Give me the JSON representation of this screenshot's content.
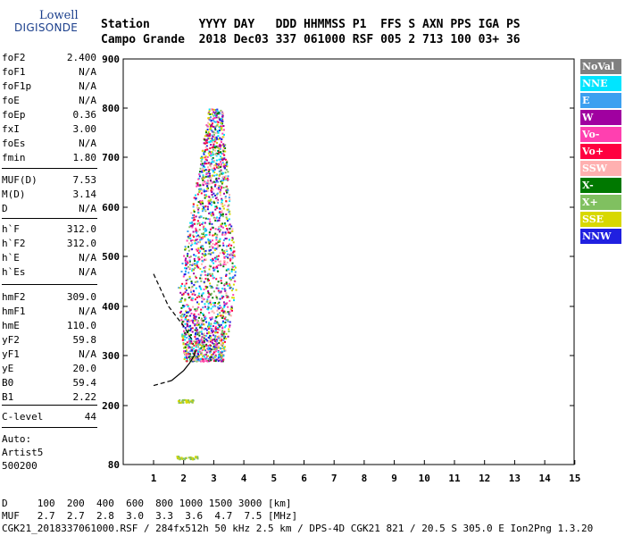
{
  "logo": {
    "line1": "Lowell",
    "line2": "DIGISONDE"
  },
  "header": {
    "row1": "Station       YYYY DAY   DDD HHMMSS P1  FFS S AXN PPS IGA PS",
    "row2": "Campo Grande  2018 Dec03 337 061000 RSF 005 2 713 100 03+ 36"
  },
  "params": [
    {
      "label": "foF2",
      "value": "2.400"
    },
    {
      "label": "foF1",
      "value": "N/A"
    },
    {
      "label": "foF1p",
      "value": "N/A"
    },
    {
      "label": "foE",
      "value": "N/A"
    },
    {
      "label": "foEp",
      "value": "0.36"
    },
    {
      "label": "fxI",
      "value": "3.00"
    },
    {
      "label": "foEs",
      "value": "N/A"
    },
    {
      "label": "fmin",
      "value": "1.80"
    },
    {
      "label": "MUF(D)",
      "value": "7.53"
    },
    {
      "label": "M(D)",
      "value": "3.14"
    },
    {
      "label": "D",
      "value": "N/A"
    },
    {
      "label": "h`F",
      "value": "312.0"
    },
    {
      "label": "h`F2",
      "value": "312.0"
    },
    {
      "label": "h`E",
      "value": "N/A"
    },
    {
      "label": "h`Es",
      "value": "N/A"
    },
    {
      "label": "hmF2",
      "value": "309.0"
    },
    {
      "label": "hmF1",
      "value": "N/A"
    },
    {
      "label": "hmE",
      "value": "110.0"
    },
    {
      "label": "yF2",
      "value": "59.8"
    },
    {
      "label": "yF1",
      "value": "N/A"
    },
    {
      "label": "yE",
      "value": "20.0"
    },
    {
      "label": "B0",
      "value": "59.4"
    },
    {
      "label": "B1",
      "value": "2.22"
    },
    {
      "label": "C-level",
      "value": "44"
    }
  ],
  "auto": {
    "line1": "Auto:",
    "line2": "Artist5",
    "line3": "500200"
  },
  "legend": [
    {
      "label": "NoVal",
      "color": "#808080"
    },
    {
      "label": "NNE",
      "color": "#00e5ff"
    },
    {
      "label": "E",
      "color": "#3ca0f0"
    },
    {
      "label": "W",
      "color": "#a000a0"
    },
    {
      "label": "Vo-",
      "color": "#ff40b0"
    },
    {
      "label": "Vo+",
      "color": "#ff0040"
    },
    {
      "label": "SSW",
      "color": "#ffb0b0"
    },
    {
      "label": "X-",
      "color": "#007800"
    },
    {
      "label": "X+",
      "color": "#80c060"
    },
    {
      "label": "SSE",
      "color": "#d8d800"
    },
    {
      "label": "NNW",
      "color": "#2020e0"
    }
  ],
  "chart_data": {
    "type": "scatter",
    "xlim": [
      1,
      15
    ],
    "ylim": [
      80,
      900
    ],
    "xticks": [
      "1",
      "2",
      "3",
      "4",
      "5",
      "6",
      "7",
      "8",
      "9",
      "10",
      "11",
      "12",
      "13",
      "14",
      "15"
    ],
    "yticks": [
      "80",
      "200",
      "300",
      "400",
      "500",
      "600",
      "700",
      "800",
      "900"
    ],
    "grid": false,
    "legend_position": "right",
    "cluster": {
      "fmin": 1.8,
      "fmax": 3.9,
      "hmin": 290,
      "hmax": 800
    },
    "low_echoes": [
      {
        "x_range": [
          1.8,
          2.3
        ],
        "h": 210
      },
      {
        "x_range": [
          1.7,
          2.5
        ],
        "h": 95
      }
    ],
    "profile_line": {
      "x": [
        1.0,
        1.6,
        2.0,
        2.2,
        2.35,
        2.4
      ],
      "h": [
        240,
        250,
        270,
        285,
        300,
        309
      ]
    },
    "profile_dashed_upper": {
      "x": [
        1.0,
        1.5,
        2.0,
        2.3
      ],
      "h": [
        465,
        400,
        360,
        330
      ]
    }
  },
  "footer": {
    "line1": "D     100  200  400  600  800 1000 1500 3000 [km]",
    "line2": "MUF   2.7  2.7  2.8  3.0  3.3  3.6  4.7  7.5 [MHz]",
    "line3": "CGK21_2018337061000.RSF / 284fx512h 50 kHz 2.5 km / DPS-4D CGK21 821 / 20.5 S 305.0 E Ion2Png 1.3.20"
  }
}
